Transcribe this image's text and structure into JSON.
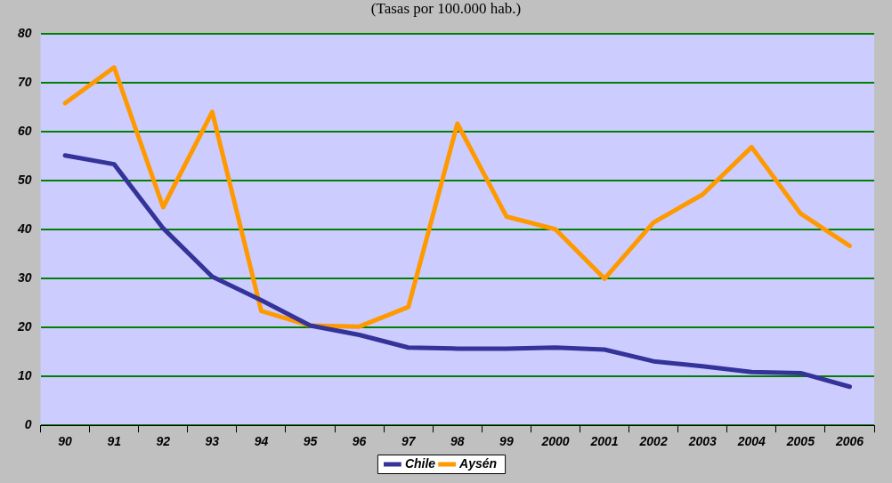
{
  "chart_data": {
    "type": "line",
    "subtitle": "(Tasas por 100.000 hab.)",
    "categories": [
      "90",
      "91",
      "92",
      "93",
      "94",
      "95",
      "96",
      "97",
      "98",
      "99",
      "2000",
      "2001",
      "2002",
      "2003",
      "2004",
      "2005",
      "2006"
    ],
    "series": [
      {
        "name": "Chile",
        "color": "#333399",
        "values": [
          55.2,
          53.4,
          40.3,
          30.4,
          25.6,
          20.4,
          18.5,
          15.9,
          15.7,
          15.7,
          15.9,
          15.5,
          13.1,
          12.1,
          10.9,
          10.7,
          7.9
        ]
      },
      {
        "name": "Aysén",
        "color": "#ff9900",
        "values": [
          65.9,
          73.2,
          44.6,
          64.1,
          23.4,
          20.4,
          20.2,
          24.2,
          61.7,
          42.7,
          40.1,
          30.0,
          41.5,
          47.2,
          56.9,
          43.3,
          36.7
        ]
      }
    ],
    "ylim": [
      0,
      80
    ],
    "yticks": [
      0,
      10,
      20,
      30,
      40,
      50,
      60,
      70,
      80
    ],
    "grid": "y",
    "legend": "bottom",
    "marker": "none",
    "line_style": "solid"
  }
}
